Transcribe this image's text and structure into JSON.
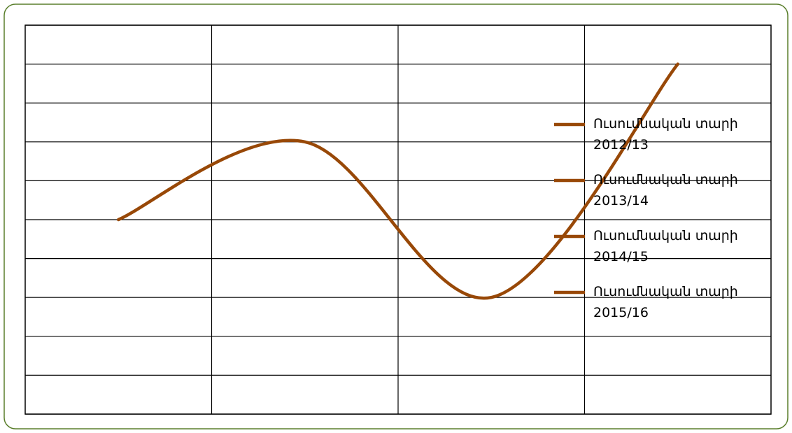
{
  "chart_data": {
    "type": "line",
    "categories": [
      null,
      null,
      null,
      null
    ],
    "series": [
      {
        "color": "#984807",
        "values": [
          5,
          7,
          3,
          9
        ]
      }
    ],
    "ylim": [
      0,
      10
    ],
    "yticks": [
      0,
      1,
      2,
      3,
      4,
      5,
      6,
      7,
      8,
      9,
      10
    ],
    "grid": true,
    "legend": {
      "position": "right",
      "entries": [
        "Ուսումնական տարի 2012/13",
        "Ուսումնական տարի 2013/14",
        "Ուսումնական տարի 2014/15",
        "Ուսումնական տարի 2015/16"
      ]
    }
  }
}
